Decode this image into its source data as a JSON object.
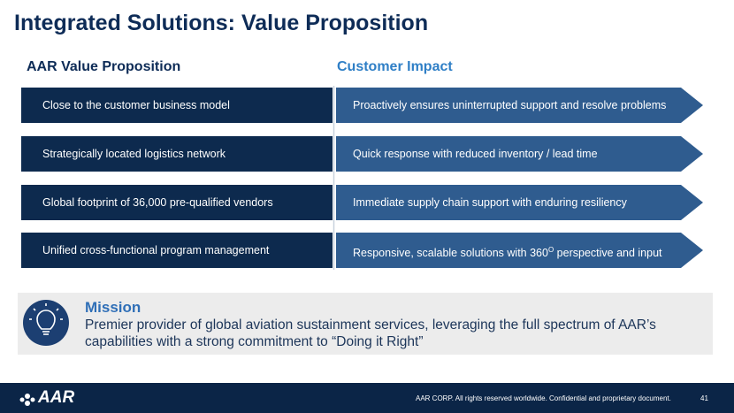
{
  "title": "Integrated Solutions: Value Proposition",
  "columns": {
    "left": "AAR Value Proposition",
    "right": "Customer Impact"
  },
  "rows": [
    {
      "value": "Close to the customer business model",
      "impact": "Proactively ensures uninterrupted support and resolve problems"
    },
    {
      "value": "Strategically located logistics network",
      "impact": "Quick response with reduced inventory / lead time"
    },
    {
      "value": "Global footprint of 36,000 pre-qualified vendors",
      "impact": "Immediate supply chain support with enduring resiliency"
    },
    {
      "value": "Unified cross-functional program management",
      "impact": {
        "before": "Responsive, scalable solutions with 360",
        "sup": "O",
        "after": " perspective and input"
      }
    }
  ],
  "mission": {
    "heading": "Mission",
    "text": "Premier provider of global aviation sustainment services, leveraging the full spectrum of AAR’s capabilities with a strong commitment to “Doing it Right”"
  },
  "footer": {
    "logo": "AAR",
    "notice": "AAR CORP. All rights reserved worldwide. Confidential and proprietary document.",
    "page": "41"
  }
}
